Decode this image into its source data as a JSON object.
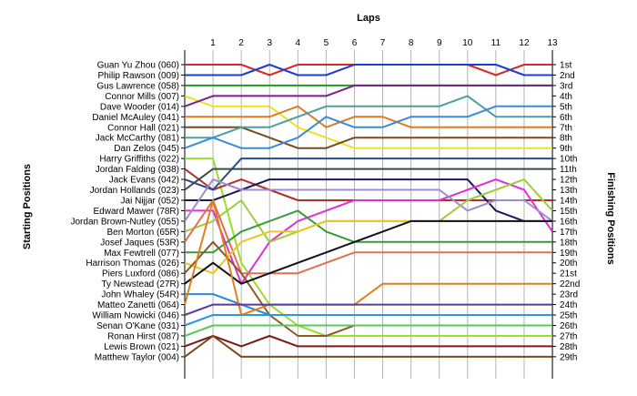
{
  "chart_data": {
    "type": "line",
    "title": "",
    "xlabel": "Laps",
    "ylabel_left": "Starting Positions",
    "ylabel_right": "Finishing Positions",
    "x": [
      1,
      2,
      3,
      4,
      5,
      6,
      7,
      8,
      9,
      10,
      11,
      12,
      13
    ],
    "y_inverted": true,
    "ylim": [
      1,
      29
    ],
    "grid": "vertical",
    "grid_color": "#b4b4b4",
    "starting_positions": [
      "Guan Yu Zhou (060)",
      "Philip Rawson (009)",
      "Gus Lawrence (058)",
      "Connor Mills (007)",
      "Dave Wooder (014)",
      "Daniel McAuley (041)",
      "Connor Hall (021)",
      "Jack McCarthy (081)",
      "Dan Zelos (045)",
      "Harry Griffiths (022)",
      "Jordan Falding (038)",
      "Jack Evans (042)",
      "Jordan Hollands (023)",
      "Jai Nijjar (052)",
      "Edward Mawer (78R)",
      "Jordan Brown-Nutley (055)",
      "Ben Morton (65R)",
      "Josef Jaques (53R)",
      "Max Fewtrell (077)",
      "Harrison Thomas (026)",
      "Piers Luxford (086)",
      "Ty Newstead (27R)",
      "John Whaley (54R)",
      "Matteo Zanetti (064)",
      "William Nowicki (046)",
      "Senan O'Kane (031)",
      "Ronan Hirst (087)",
      "Lewis Brown (021)",
      "Matthew Taylor (004)"
    ],
    "finishing_positions": [
      "1st",
      "2nd",
      "3rd",
      "4th",
      "5th",
      "6th",
      "7th",
      "8th",
      "9th",
      "10th",
      "11th",
      "12th",
      "13th",
      "14th",
      "15th",
      "16th",
      "17th",
      "18th",
      "19th",
      "20th",
      "21st",
      "22nd",
      "23rd",
      "24th",
      "25th",
      "26th",
      "27th",
      "28th",
      "29th"
    ],
    "series": [
      {
        "start": 1,
        "color": "#d42b2b",
        "values": [
          1,
          1,
          2,
          1,
          1,
          1,
          1,
          1,
          1,
          1,
          2,
          1,
          1
        ]
      },
      {
        "start": 2,
        "color": "#1a3fd0",
        "values": [
          2,
          2,
          1,
          2,
          2,
          1,
          1,
          1,
          1,
          1,
          1,
          2,
          2
        ]
      },
      {
        "start": 3,
        "color": "#1f9a1f",
        "values": [
          3,
          3,
          3,
          3,
          3,
          3,
          3,
          3,
          3,
          3,
          3,
          3,
          3
        ]
      },
      {
        "start": 4,
        "color": "#f0e020",
        "values": [
          5,
          5,
          5,
          7,
          8,
          9,
          9,
          9,
          9,
          9,
          9,
          9,
          9
        ]
      },
      {
        "start": 5,
        "color": "#7a1f8e",
        "values": [
          4,
          4,
          4,
          4,
          4,
          3,
          3,
          3,
          3,
          3,
          3,
          3,
          3
        ]
      },
      {
        "start": 6,
        "color": "#e07b20",
        "values": [
          6,
          6,
          6,
          5,
          7,
          6,
          6,
          7,
          7,
          7,
          7,
          7,
          7
        ]
      },
      {
        "start": 7,
        "color": "#7a4a1a",
        "values": [
          7,
          7,
          8,
          9,
          9,
          8,
          8,
          8,
          8,
          8,
          8,
          8,
          8
        ]
      },
      {
        "start": 8,
        "color": "#4aa0a0",
        "values": [
          8,
          7,
          7,
          6,
          5,
          5,
          5,
          5,
          5,
          4,
          6,
          6,
          6
        ]
      },
      {
        "start": 9,
        "color": "#3a8ad8",
        "values": [
          8,
          9,
          9,
          8,
          6,
          7,
          7,
          6,
          6,
          6,
          5,
          5,
          5
        ]
      },
      {
        "start": 10,
        "color": "#9ade2a",
        "values": [
          10,
          20,
          24,
          26,
          27,
          27,
          27,
          27,
          27,
          27,
          27,
          27,
          27
        ]
      },
      {
        "start": 11,
        "color": "#b0302c",
        "values": [
          13,
          12,
          13,
          14,
          14,
          14,
          14,
          14,
          14,
          14,
          14,
          14,
          14
        ]
      },
      {
        "start": 12,
        "color": "#2a4a90",
        "values": [
          13,
          10,
          10,
          10,
          10,
          10,
          10,
          10,
          10,
          10,
          10,
          10,
          10
        ]
      },
      {
        "start": 13,
        "color": "#3a4a4a",
        "values": [
          11,
          11,
          11,
          11,
          11,
          11,
          11,
          11,
          11,
          11,
          11,
          11,
          11
        ]
      },
      {
        "start": 14,
        "color": "#1a1a5a",
        "values": [
          14,
          13,
          12,
          12,
          12,
          12,
          12,
          12,
          12,
          12,
          15,
          16,
          16
        ]
      },
      {
        "start": 15,
        "color": "#e030d0",
        "values": [
          15,
          22,
          18,
          16,
          15,
          14,
          14,
          14,
          14,
          13,
          12,
          13,
          17
        ]
      },
      {
        "start": 16,
        "color": "#a08ad0",
        "values": [
          12,
          13,
          13,
          13,
          13,
          13,
          13,
          13,
          13,
          15,
          14,
          14,
          16
        ]
      },
      {
        "start": 17,
        "color": "#9acf3a",
        "values": [
          16,
          14,
          18,
          17,
          16,
          16,
          16,
          16,
          16,
          14,
          13,
          12,
          15
        ]
      },
      {
        "start": 18,
        "color": "#e07050",
        "values": [
          14,
          21,
          21,
          21,
          20,
          19,
          19,
          19,
          19,
          19,
          19,
          19,
          19
        ]
      },
      {
        "start": 19,
        "color": "#3a9a3a",
        "values": [
          19,
          17,
          16,
          15,
          17,
          18,
          18,
          18,
          18,
          18,
          18,
          18,
          18
        ]
      },
      {
        "start": 20,
        "color": "#e8c820",
        "values": [
          21,
          18,
          17,
          17,
          16,
          16,
          16,
          16,
          16,
          16,
          16,
          16,
          16
        ]
      },
      {
        "start": 21,
        "color": "#8a5a2a",
        "values": [
          18,
          21,
          25,
          27,
          27,
          26,
          26,
          26,
          26,
          26,
          26,
          26,
          26
        ]
      },
      {
        "start": 22,
        "color": "#101020",
        "values": [
          20,
          22,
          21,
          20,
          19,
          18,
          17,
          16,
          16,
          16,
          16,
          16,
          16
        ]
      },
      {
        "start": 23,
        "color": "#2a8ad8",
        "values": [
          23,
          24,
          25,
          25,
          25,
          25,
          25,
          25,
          25,
          25,
          25,
          25,
          25
        ]
      },
      {
        "start": 24,
        "color": "#e0801a",
        "values": [
          14,
          25,
          24,
          24,
          24,
          24,
          22,
          22,
          22,
          22,
          22,
          22,
          22
        ]
      },
      {
        "start": 25,
        "color": "#5a3a9a",
        "values": [
          24,
          24,
          24,
          24,
          24,
          24,
          24,
          24,
          24,
          24,
          24,
          24,
          24
        ]
      },
      {
        "start": 26,
        "color": "#2a9ad8",
        "values": [
          25,
          25,
          25,
          25,
          25,
          25,
          25,
          25,
          25,
          25,
          25,
          25,
          25
        ]
      },
      {
        "start": 27,
        "color": "#5ac85a",
        "values": [
          26,
          26,
          26,
          26,
          26,
          26,
          26,
          26,
          26,
          26,
          26,
          26,
          26
        ]
      },
      {
        "start": 28,
        "color": "#7a1a1a",
        "values": [
          27,
          28,
          27,
          28,
          28,
          28,
          28,
          28,
          28,
          28,
          28,
          28,
          28
        ]
      },
      {
        "start": 29,
        "color": "#7a4a1a",
        "values": [
          27,
          29,
          29,
          29,
          29,
          29,
          29,
          29,
          29,
          29,
          29,
          29,
          29
        ]
      }
    ]
  }
}
